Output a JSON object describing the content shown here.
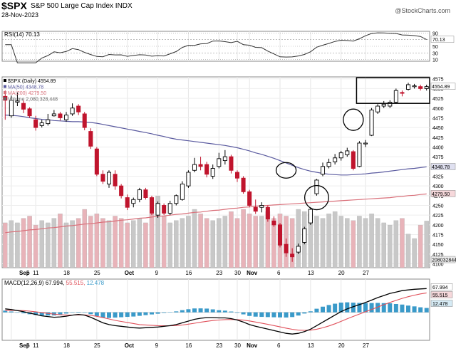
{
  "header": {
    "symbol": "$SPX",
    "name": "S&P 500 Large Cap Index",
    "exchange": "INDX",
    "date": "28-Nov-2023",
    "credit": "@StockCharts.com"
  },
  "colors": {
    "up": "#000000",
    "down": "#c0142d",
    "ma50": "#5a5a9f",
    "ma200": "#d9707a",
    "vol_up": "#c8c8c8",
    "vol_down": "#e8b3b9",
    "macd_line": "#000000",
    "signal_line": "#e0505a",
    "histogram": "#3a9ac9"
  },
  "chart_data": [
    {
      "type": "line",
      "title": "RSI(14) 70.13",
      "series": [
        {
          "name": "RSI(14)",
          "last": 70.13
        }
      ],
      "y_ticks": [
        10,
        30,
        50,
        70,
        90
      ],
      "ylim": [
        5,
        95
      ],
      "current_label": "70.13"
    },
    {
      "type": "candlestick",
      "title": "$SPX (Daily) 4554.89",
      "legend": [
        "$SPX (Daily) 4554.89",
        "MA(50) 4348.78",
        "MA(200) 4279.50",
        "Volume 2,080,328,448"
      ],
      "ylim": [
        4090,
        4580
      ],
      "y_ticks": [
        4100,
        4125,
        4150,
        4175,
        4200,
        4225,
        4250,
        4275,
        4300,
        4325,
        4350,
        4375,
        4400,
        4425,
        4450,
        4475,
        4500,
        4525,
        4550,
        4575
      ],
      "price_labels": [
        "4554.89",
        "4348.78",
        "4279.50",
        "2080328448"
      ],
      "x_ticks": [
        "Sep",
        "5",
        "11",
        "18",
        "25",
        "Oct",
        "9",
        "16",
        "23",
        "30",
        "Nov",
        "6",
        "13",
        "20",
        "27"
      ],
      "candles": [
        [
          4530,
          4520,
          4545,
          4470
        ],
        [
          4480,
          4520,
          4532,
          4475
        ],
        [
          4515,
          4518,
          4540,
          4505
        ],
        [
          4512,
          4497,
          4520,
          4487
        ],
        [
          4498,
          4480,
          4502,
          4475
        ],
        [
          4470,
          4450,
          4480,
          4442
        ],
        [
          4455,
          4462,
          4470,
          4450
        ],
        [
          4460,
          4470,
          4485,
          4455
        ],
        [
          4480,
          4485,
          4495,
          4478
        ],
        [
          4485,
          4475,
          4490,
          4468
        ],
        [
          4470,
          4482,
          4490,
          4465
        ],
        [
          4485,
          4500,
          4512,
          4480
        ],
        [
          4505,
          4490,
          4510,
          4482
        ],
        [
          4485,
          4450,
          4490,
          4443
        ],
        [
          4440,
          4402,
          4448,
          4395
        ],
        [
          4395,
          4330,
          4400,
          4325
        ],
        [
          4330,
          4312,
          4340,
          4305
        ],
        [
          4305,
          4335,
          4340,
          4295
        ],
        [
          4330,
          4300,
          4340,
          4290
        ],
        [
          4300,
          4275,
          4305,
          4268
        ],
        [
          4270,
          4245,
          4278,
          4238
        ],
        [
          4255,
          4265,
          4270,
          4245
        ],
        [
          4265,
          4290,
          4295,
          4258
        ],
        [
          4290,
          4270,
          4295,
          4265
        ],
        [
          4270,
          4230,
          4275,
          4225
        ],
        [
          4225,
          4255,
          4260,
          4218
        ],
        [
          4250,
          4230,
          4255,
          4225
        ],
        [
          4230,
          4255,
          4262,
          4225
        ],
        [
          4255,
          4275,
          4278,
          4250
        ],
        [
          4265,
          4305,
          4312,
          4262
        ],
        [
          4300,
          4335,
          4340,
          4295
        ],
        [
          4340,
          4355,
          4372,
          4335
        ],
        [
          4355,
          4350,
          4375,
          4340
        ],
        [
          4355,
          4330,
          4362,
          4322
        ],
        [
          4325,
          4345,
          4355,
          4318
        ],
        [
          4350,
          4370,
          4385,
          4345
        ],
        [
          4365,
          4375,
          4392,
          4355
        ],
        [
          4375,
          4340,
          4380,
          4332
        ],
        [
          4335,
          4320,
          4340,
          4310
        ],
        [
          4320,
          4285,
          4325,
          4280
        ],
        [
          4285,
          4250,
          4290,
          4245
        ],
        [
          4245,
          4235,
          4265,
          4228
        ],
        [
          4245,
          4250,
          4258,
          4232
        ],
        [
          4245,
          4215,
          4250,
          4208
        ],
        [
          4210,
          4200,
          4222,
          4195
        ],
        [
          4200,
          4148,
          4205,
          4142
        ],
        [
          4150,
          4128,
          4165,
          4118
        ],
        [
          4125,
          4118,
          4140,
          4105
        ],
        [
          4130,
          4145,
          4152,
          4125
        ],
        [
          4155,
          4190,
          4195,
          4150
        ],
        [
          4205,
          4240,
          4245,
          4200
        ],
        [
          4280,
          4315,
          4318,
          4275
        ],
        [
          4330,
          4350,
          4360,
          4325
        ],
        [
          4350,
          4360,
          4370,
          4345
        ],
        [
          4362,
          4372,
          4382,
          4355
        ],
        [
          4372,
          4385,
          4390,
          4365
        ],
        [
          4380,
          4390,
          4398,
          4375
        ],
        [
          4388,
          4345,
          4392,
          4340
        ],
        [
          4350,
          4410,
          4415,
          4348
        ],
        [
          4408,
          4410,
          4418,
          4400
        ],
        [
          4430,
          4495,
          4500,
          4428
        ],
        [
          4490,
          4505,
          4510,
          4485
        ],
        [
          4505,
          4510,
          4518,
          4500
        ],
        [
          4505,
          4515,
          4520,
          4500
        ],
        [
          4515,
          4545,
          4550,
          4512
        ],
        [
          4540,
          4538,
          4545,
          4530
        ],
        [
          4548,
          4560,
          4565,
          4545
        ],
        [
          4555,
          4557,
          4562,
          4550
        ],
        [
          4555,
          4550,
          4560,
          4545
        ],
        [
          4550,
          4555,
          4560,
          4545
        ]
      ],
      "ma50": [
        4482,
        4481,
        4480,
        4478,
        4475,
        4473,
        4471,
        4470,
        4468,
        4467,
        4466,
        4465,
        4465,
        4464,
        4463,
        4461,
        4458,
        4455,
        4452,
        4449,
        4446,
        4443,
        4440,
        4437,
        4434,
        4430,
        4427,
        4423,
        4420,
        4418,
        4416,
        4414,
        4412,
        4410,
        4408,
        4406,
        4404,
        4401,
        4398,
        4394,
        4390,
        4385,
        4381,
        4376,
        4371,
        4365,
        4359,
        4353,
        4347,
        4342,
        4338,
        4335,
        4332,
        4330,
        4329,
        4328,
        4328,
        4329,
        4330,
        4331,
        4333,
        4334,
        4336,
        4338,
        4340,
        4342,
        4344,
        4345,
        4347,
        4349
      ],
      "ma200": [
        4180,
        4182,
        4183,
        4185,
        4187,
        4188,
        4190,
        4192,
        4193,
        4195,
        4197,
        4198,
        4200,
        4202,
        4203,
        4205,
        4207,
        4208,
        4210,
        4212,
        4213,
        4215,
        4217,
        4218,
        4220,
        4222,
        4223,
        4225,
        4227,
        4228,
        4230,
        4232,
        4233,
        4235,
        4237,
        4238,
        4240,
        4242,
        4243,
        4245,
        4246,
        4248,
        4249,
        4250,
        4251,
        4252,
        4253,
        4254,
        4255,
        4256,
        4257,
        4258,
        4259,
        4260,
        4261,
        4262,
        4263,
        4264,
        4265,
        4266,
        4267,
        4268,
        4269,
        4270,
        4272,
        4273,
        4275,
        4276,
        4278,
        4279.5
      ],
      "volume_bn": [
        2.0,
        2.1,
        2.0,
        2.2,
        2.3,
        1.9,
        2.1,
        2.0,
        2.2,
        2.4,
        2.0,
        2.1,
        2.2,
        2.6,
        2.3,
        2.4,
        2.2,
        2.1,
        2.3,
        2.2,
        2.0,
        2.1,
        2.2,
        2.0,
        2.4,
        3.2,
        2.3,
        2.0,
        2.1,
        2.2,
        2.3,
        2.6,
        2.4,
        2.2,
        2.1,
        2.2,
        2.3,
        2.5,
        2.2,
        2.6,
        2.4,
        2.3,
        2.3,
        2.5,
        2.2,
        2.4,
        2.3,
        2.2,
        2.6,
        2.5,
        2.4,
        2.3,
        2.2,
        2.4,
        2.5,
        2.3,
        2.2,
        2.1,
        2.3,
        2.2,
        2.4,
        2.2,
        2.0,
        1.9,
        2.1,
        2.2,
        1.5,
        1.3,
        1.9,
        2.08
      ]
    },
    {
      "type": "line",
      "title": "MACD(12,26,9) 67.994, 55.515, 12.478",
      "title_parts": {
        "name": "MACD(12,26,9)",
        "macd": "67.994",
        "signal": "55.515",
        "hist": "12.478"
      },
      "ylim": [
        -80,
        95
      ],
      "x_ticks": [
        "Sep",
        "5",
        "11",
        "18",
        "25",
        "Oct",
        "9",
        "16",
        "23",
        "30",
        "Nov",
        "6",
        "13",
        "20",
        "27"
      ],
      "macd": [
        10,
        8,
        5,
        2,
        -2,
        -6,
        -10,
        -12,
        -14,
        -13,
        -11,
        -8,
        -6,
        -8,
        -14,
        -22,
        -30,
        -35,
        -38,
        -40,
        -42,
        -44,
        -45,
        -44,
        -43,
        -42,
        -40,
        -38,
        -35,
        -30,
        -25,
        -20,
        -17,
        -15,
        -15,
        -16,
        -16,
        -18,
        -22,
        -28,
        -35,
        -40,
        -44,
        -48,
        -52,
        -56,
        -60,
        -62,
        -60,
        -55,
        -48,
        -38,
        -28,
        -18,
        -8,
        2,
        10,
        16,
        22,
        28,
        35,
        42,
        48,
        54,
        58,
        62,
        64,
        66,
        67,
        67.994
      ],
      "signal": [
        5,
        5.6,
        5.5,
        4.8,
        3.4,
        1.5,
        -0.8,
        -3,
        -5.2,
        -6.8,
        -7.6,
        -7.7,
        -7.3,
        -7.4,
        -8.7,
        -11.4,
        -15,
        -19,
        -23,
        -26,
        -29,
        -32,
        -35,
        -36,
        -37,
        -38,
        -38.5,
        -38.4,
        -37.7,
        -36.2,
        -33.9,
        -31.1,
        -28.3,
        -25.7,
        -23.5,
        -22,
        -20.8,
        -20.3,
        -20.7,
        -22.2,
        -24.7,
        -27.7,
        -31,
        -34.4,
        -37.9,
        -41.5,
        -45.2,
        -48.5,
        -50.8,
        -51.6,
        -50.9,
        -48.3,
        -44.2,
        -38.9,
        -32.7,
        -25.8,
        -18.6,
        -11.7,
        -4.9,
        1.7,
        8.4,
        15.1,
        21.7,
        28.2,
        34.2,
        39.8,
        44.7,
        49,
        52.6,
        55.515
      ]
    }
  ]
}
